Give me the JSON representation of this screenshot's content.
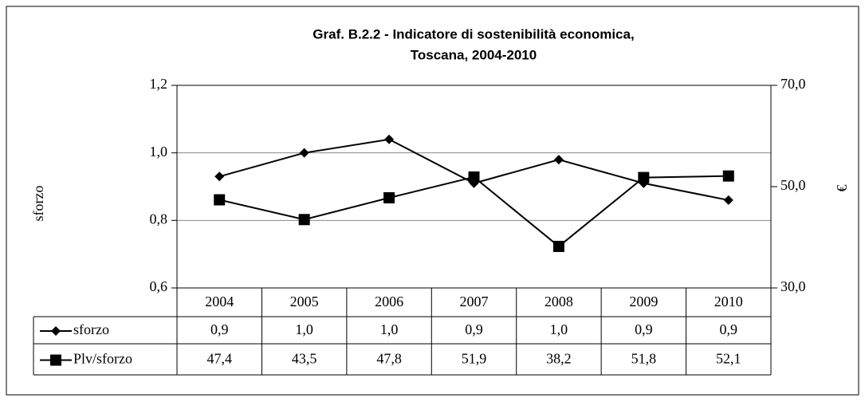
{
  "chart_data": {
    "type": "line",
    "title": [
      "Graf. B.2.2 - Indicatore di sostenibilità economica,",
      "Toscana, 2004-2010"
    ],
    "ylabel": "sforzo",
    "y2label": "€",
    "categories": [
      "2004",
      "2005",
      "2006",
      "2007",
      "2008",
      "2009",
      "2010"
    ],
    "series": [
      {
        "name": "sforzo",
        "color": "#000000",
        "marker": "diamond",
        "values": [
          0.93,
          1.0,
          1.04,
          0.91,
          0.98,
          0.91,
          0.86
        ],
        "value_labels": [
          "0,9",
          "1,0",
          "1,0",
          "0,9",
          "1,0",
          "0,9",
          "0,9"
        ]
      },
      {
        "name": "Plv/sforzo",
        "color": "#000000",
        "marker": "square",
        "axis": "y2",
        "values": [
          47.4,
          43.5,
          47.8,
          51.9,
          38.2,
          51.8,
          52.1
        ],
        "value_labels": [
          "47,4",
          "43,5",
          "47,8",
          "51,9",
          "38,2",
          "51,8",
          "52,1"
        ]
      }
    ],
    "ylim": [
      0.6,
      1.2
    ],
    "yticks": [
      {
        "value": 0.6,
        "label": "0,6"
      },
      {
        "value": 0.8,
        "label": "0,8"
      },
      {
        "value": 1.0,
        "label": "1,0"
      },
      {
        "value": 1.2,
        "label": "1,2"
      }
    ],
    "y2lim": [
      30,
      70
    ],
    "y2ticks": [
      {
        "value": 30,
        "label": "30,0"
      },
      {
        "value": 50,
        "label": "50,0"
      },
      {
        "value": 70,
        "label": "70,0"
      }
    ],
    "grid": true
  }
}
